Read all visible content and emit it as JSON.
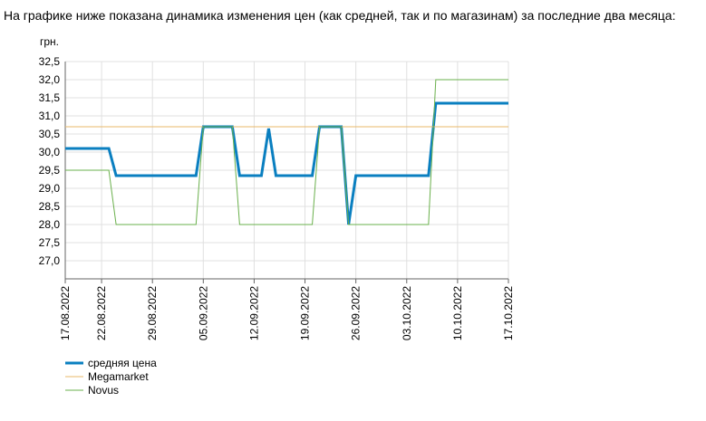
{
  "chart_data": {
    "type": "line",
    "title": "На графике ниже показана динамика изменения цен (как средней, так и по магазинам) за последние два месяца:",
    "y_label": "грн.",
    "xlim": [
      "17.08.2022",
      "17.10.2022"
    ],
    "xticks": [
      "17.08.2022",
      "22.08.2022",
      "29.08.2022",
      "05.09.2022",
      "12.09.2022",
      "19.09.2022",
      "26.09.2022",
      "03.10.2022",
      "10.10.2022",
      "17.10.2022"
    ],
    "ylim": [
      26.5,
      32.5
    ],
    "yticks": [
      {
        "value": 27,
        "label": "27,0"
      },
      {
        "value": 27.5,
        "label": "27,5"
      },
      {
        "value": 28,
        "label": "28,0"
      },
      {
        "value": 28.5,
        "label": "28,5"
      },
      {
        "value": 29,
        "label": "29,0"
      },
      {
        "value": 29.5,
        "label": "29,5"
      },
      {
        "value": 30,
        "label": "30,0"
      },
      {
        "value": 30.5,
        "label": "30,5"
      },
      {
        "value": 31,
        "label": "31,0"
      },
      {
        "value": 31.5,
        "label": "31,5"
      },
      {
        "value": 32,
        "label": "32,0"
      },
      {
        "value": 32.5,
        "label": "32,5"
      }
    ],
    "grid": true,
    "series": [
      {
        "name": "средняя цена",
        "color": "#0a7fc0",
        "width": 3,
        "x": [
          "17.08.2022",
          "23.08.2022",
          "24.08.2022",
          "04.09.2022",
          "05.09.2022",
          "09.09.2022",
          "10.09.2022",
          "13.09.2022",
          "14.09.2022",
          "15.09.2022",
          "20.09.2022",
          "21.09.2022",
          "24.09.2022",
          "25.09.2022",
          "26.09.2022",
          "06.10.2022",
          "07.10.2022",
          "17.10.2022"
        ],
        "values": [
          30.1,
          30.1,
          29.35,
          29.35,
          30.7,
          30.7,
          29.35,
          29.35,
          30.65,
          29.35,
          29.35,
          30.7,
          30.7,
          28.0,
          29.35,
          29.35,
          31.35,
          31.35
        ]
      },
      {
        "name": "Megamarket",
        "color": "#e8b86a",
        "width": 1,
        "x": [
          "17.08.2022",
          "17.10.2022"
        ],
        "values": [
          30.7,
          30.7
        ]
      },
      {
        "name": "Novus",
        "color": "#6ab04c",
        "width": 1,
        "x": [
          "17.08.2022",
          "23.08.2022",
          "24.08.2022",
          "04.09.2022",
          "05.09.2022",
          "09.09.2022",
          "10.09.2022",
          "20.09.2022",
          "21.09.2022",
          "24.09.2022",
          "25.09.2022",
          "06.10.2022",
          "07.10.2022",
          "17.10.2022"
        ],
        "values": [
          29.5,
          29.5,
          28.0,
          28.0,
          30.7,
          30.7,
          28.0,
          28.0,
          30.7,
          30.7,
          28.0,
          28.0,
          32.0,
          32.0
        ]
      }
    ]
  }
}
